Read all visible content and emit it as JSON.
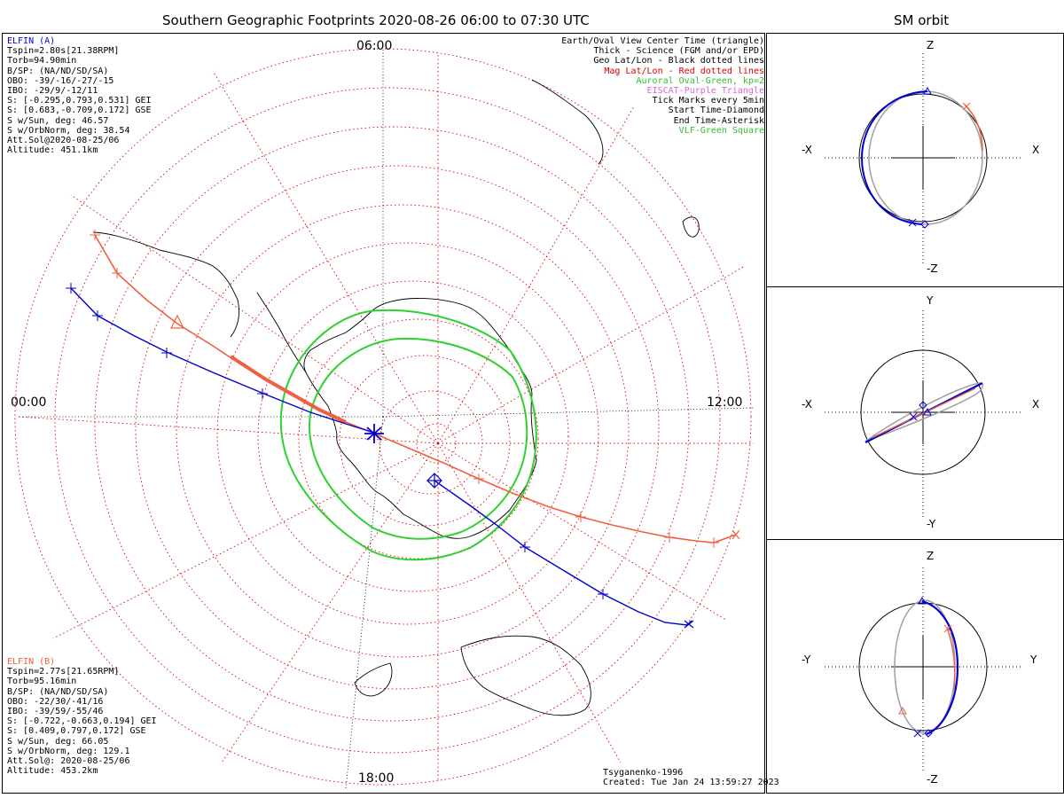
{
  "main_title": "Southern Geographic Footprints 2020-08-26 06:00 to 07:30 UTC",
  "orbit_title": "SM orbit",
  "time_labels": {
    "top": "06:00",
    "left": "00:00",
    "right": "12:00",
    "bottom": "18:00"
  },
  "elfin_a": {
    "name": "ELFIN (A)",
    "color": "#0000d0",
    "lines": [
      "Tspin=2.80s[21.38RPM]",
      "Torb=94.90min",
      "B/SP: (NA/ND/SD/SA)",
      "OBO: -39/-16/-27/-15",
      "IBO: -29/9/-12/11",
      "S: [-0.295,0.793,0.531] GEI",
      "S: [0.683,-0.709,0.172] GSE",
      "S w/Sun, deg: 46.57",
      "S w/OrbNorm, deg: 38.54",
      "Att.Sol@2020-08-25/06",
      "Altitude: 451.1km"
    ]
  },
  "elfin_b": {
    "name": "ELFIN (B)",
    "color": "#f06040",
    "lines": [
      "Tspin=2.77s[21.65RPM]",
      "Torb=95.16min",
      "B/SP: (NA/ND/SD/SA)",
      "OBO: -22/30/-41/16",
      "IBO: -39/59/-55/46",
      "S: [-0.722,-0.663,0.194] GEI",
      "S: [0.409,0.797,0.172] GSE",
      "S w/Sun, deg: 66.05",
      "S w/OrbNorm, deg: 129.1",
      "Att.Sol@: 2020-08-25/06",
      "Altitude: 453.2km"
    ]
  },
  "legend": [
    {
      "text": "Earth/Oval View Center Time (triangle)",
      "color": "#000000"
    },
    {
      "text": "Thick - Science (FGM and/or EPD)",
      "color": "#000000"
    },
    {
      "text": "Geo Lat/Lon - Black dotted lines",
      "color": "#000000"
    },
    {
      "text": "Mag Lat/Lon - Red dotted lines",
      "color": "#e00000"
    },
    {
      "text": "Auroral Oval-Green, kp=2",
      "color": "#30c030"
    },
    {
      "text": "EISCAT-Purple Triangle",
      "color": "#e060e0"
    },
    {
      "text": "Tick Marks every 5min",
      "color": "#000000"
    },
    {
      "text": "Start Time-Diamond",
      "color": "#000000"
    },
    {
      "text": "End Time-Asterisk",
      "color": "#000000"
    },
    {
      "text": "VLF-Green Square",
      "color": "#30c030"
    }
  ],
  "credits": {
    "model": "Tsyganenko-1996",
    "created": "Created: Tue Jan 24 13:59:27 2023"
  },
  "panels": [
    {
      "top": "Z",
      "bottom": "-Z",
      "left": "-X",
      "right": "X"
    },
    {
      "top": "Y",
      "bottom": "-Y",
      "left": "-X",
      "right": "X"
    },
    {
      "top": "Z",
      "bottom": "-Z",
      "left": "-Y",
      "right": "Y"
    }
  ],
  "colors": {
    "oval": "#30d030",
    "mag_grid": "#e00000",
    "geo_grid": "#000000",
    "orbit_gray": "#a0a0a0"
  }
}
